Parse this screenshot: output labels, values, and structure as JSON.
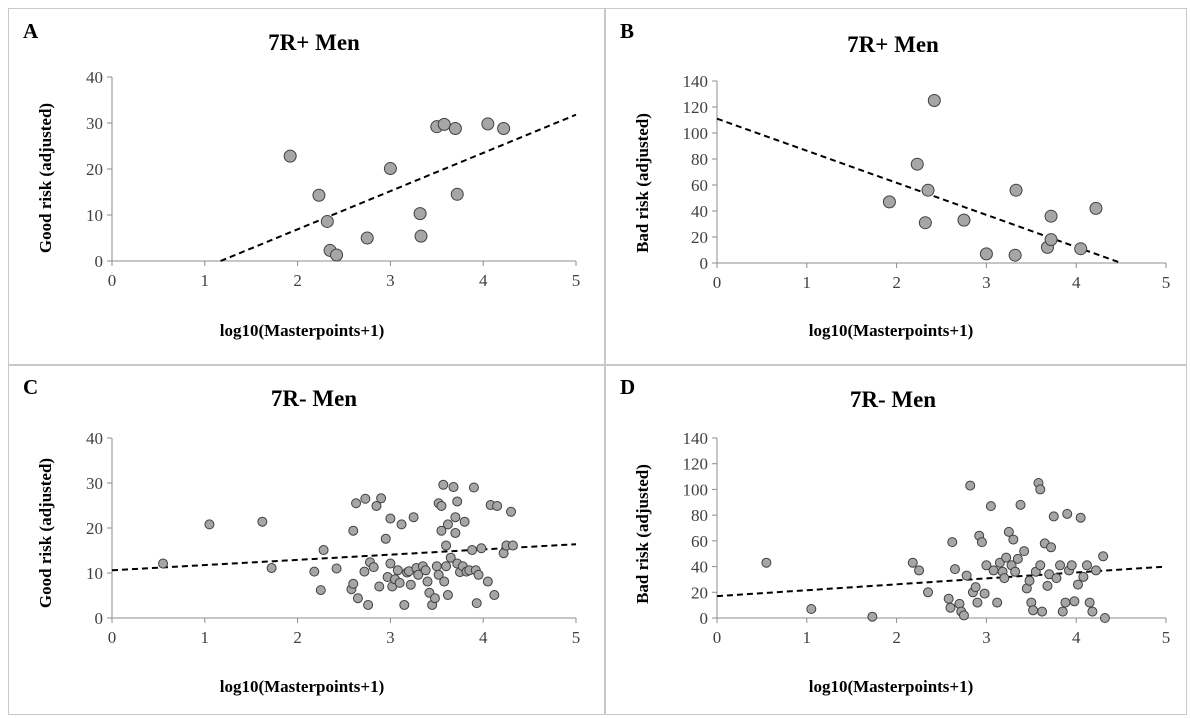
{
  "chart_data": [
    {
      "panel": "A",
      "type": "scatter",
      "title": "7R+ Men",
      "xlabel": "log10(Masterpoints+1)",
      "ylabel": "Good risk (adjusted)",
      "xlim": [
        0,
        5
      ],
      "ylim": [
        0,
        40
      ],
      "xticks": [
        0,
        1,
        2,
        3,
        4,
        5
      ],
      "yticks": [
        0,
        10,
        20,
        30,
        40
      ],
      "grid": false,
      "marker_color": "#a6a6a6",
      "points": [
        [
          1.92,
          22.8
        ],
        [
          2.23,
          14.3
        ],
        [
          2.32,
          8.6
        ],
        [
          2.35,
          2.3
        ],
        [
          2.42,
          1.3
        ],
        [
          2.75,
          5.0
        ],
        [
          3.0,
          20.1
        ],
        [
          3.32,
          10.3
        ],
        [
          3.33,
          5.4
        ],
        [
          3.5,
          29.2
        ],
        [
          3.58,
          29.7
        ],
        [
          3.7,
          28.8
        ],
        [
          3.72,
          14.5
        ],
        [
          4.05,
          29.8
        ],
        [
          4.22,
          28.8
        ]
      ],
      "trendline": {
        "style": "dashed",
        "x": [
          1.17,
          5.0
        ],
        "y": [
          0,
          31.8
        ]
      }
    },
    {
      "panel": "B",
      "type": "scatter",
      "title": "7R+ Men",
      "xlabel": "log10(Masterpoints+1)",
      "ylabel": "Bad risk (adjusted)",
      "xlim": [
        0,
        5
      ],
      "ylim": [
        0,
        140
      ],
      "xticks": [
        0,
        1,
        2,
        3,
        4,
        5
      ],
      "yticks": [
        0,
        20,
        40,
        60,
        80,
        100,
        120,
        140
      ],
      "grid": false,
      "marker_color": "#a6a6a6",
      "points": [
        [
          1.92,
          47
        ],
        [
          2.23,
          76
        ],
        [
          2.32,
          31
        ],
        [
          2.35,
          56
        ],
        [
          2.42,
          125
        ],
        [
          2.75,
          33
        ],
        [
          3.0,
          7
        ],
        [
          3.32,
          6
        ],
        [
          3.33,
          56
        ],
        [
          3.68,
          12
        ],
        [
          3.72,
          36
        ],
        [
          3.72,
          18
        ],
        [
          4.05,
          11
        ],
        [
          4.22,
          42
        ]
      ],
      "trendline": {
        "style": "dashed",
        "x": [
          0.0,
          4.5
        ],
        "y": [
          111,
          0
        ]
      }
    },
    {
      "panel": "C",
      "type": "scatter",
      "title": "7R- Men",
      "xlabel": "log10(Masterpoints+1)",
      "ylabel": "Good risk (adjusted)",
      "xlim": [
        0,
        5
      ],
      "ylim": [
        0,
        40
      ],
      "xticks": [
        0,
        1,
        2,
        3,
        4,
        5
      ],
      "yticks": [
        0,
        10,
        20,
        30,
        40
      ],
      "grid": false,
      "marker_color": "#a6a6a6",
      "points": [
        [
          0.55,
          12.1
        ],
        [
          1.05,
          20.8
        ],
        [
          1.62,
          21.4
        ],
        [
          1.72,
          11.1
        ],
        [
          2.18,
          10.3
        ],
        [
          2.25,
          6.2
        ],
        [
          2.28,
          15.1
        ],
        [
          2.42,
          11.0
        ],
        [
          2.58,
          6.4
        ],
        [
          2.6,
          7.6
        ],
        [
          2.6,
          19.4
        ],
        [
          2.63,
          25.5
        ],
        [
          2.65,
          4.4
        ],
        [
          2.72,
          10.3
        ],
        [
          2.73,
          26.5
        ],
        [
          2.76,
          2.9
        ],
        [
          2.78,
          12.4
        ],
        [
          2.82,
          11.3
        ],
        [
          2.85,
          24.9
        ],
        [
          2.88,
          7.0
        ],
        [
          2.9,
          26.6
        ],
        [
          2.95,
          17.6
        ],
        [
          2.97,
          9.1
        ],
        [
          3.0,
          12.1
        ],
        [
          3.0,
          22.1
        ],
        [
          3.02,
          7.0
        ],
        [
          3.05,
          8.6
        ],
        [
          3.08,
          10.6
        ],
        [
          3.1,
          7.8
        ],
        [
          3.12,
          20.8
        ],
        [
          3.15,
          2.9
        ],
        [
          3.18,
          10.1
        ],
        [
          3.2,
          10.4
        ],
        [
          3.22,
          7.4
        ],
        [
          3.25,
          22.4
        ],
        [
          3.28,
          11.1
        ],
        [
          3.3,
          9.6
        ],
        [
          3.35,
          11.5
        ],
        [
          3.38,
          10.6
        ],
        [
          3.4,
          8.1
        ],
        [
          3.42,
          5.6
        ],
        [
          3.45,
          2.9
        ],
        [
          3.48,
          4.4
        ],
        [
          3.5,
          11.5
        ],
        [
          3.52,
          9.6
        ],
        [
          3.52,
          25.5
        ],
        [
          3.55,
          24.9
        ],
        [
          3.55,
          19.4
        ],
        [
          3.57,
          29.6
        ],
        [
          3.58,
          8.1
        ],
        [
          3.6,
          11.5
        ],
        [
          3.6,
          16.1
        ],
        [
          3.62,
          20.8
        ],
        [
          3.62,
          5.1
        ],
        [
          3.65,
          13.4
        ],
        [
          3.68,
          29.1
        ],
        [
          3.7,
          18.9
        ],
        [
          3.7,
          22.4
        ],
        [
          3.72,
          25.9
        ],
        [
          3.72,
          12.1
        ],
        [
          3.75,
          10.2
        ],
        [
          3.78,
          11.5
        ],
        [
          3.8,
          21.4
        ],
        [
          3.82,
          10.3
        ],
        [
          3.85,
          10.6
        ],
        [
          3.88,
          15.1
        ],
        [
          3.9,
          29.0
        ],
        [
          3.92,
          10.6
        ],
        [
          3.93,
          3.3
        ],
        [
          3.95,
          9.6
        ],
        [
          3.98,
          15.5
        ],
        [
          4.05,
          8.1
        ],
        [
          4.08,
          25.1
        ],
        [
          4.12,
          5.1
        ],
        [
          4.15,
          24.9
        ],
        [
          4.22,
          14.4
        ],
        [
          4.25,
          16.1
        ],
        [
          4.3,
          23.6
        ],
        [
          4.32,
          16.1
        ]
      ],
      "trendline": {
        "style": "dashed",
        "x": [
          0.0,
          5.0
        ],
        "y": [
          10.6,
          16.4
        ]
      }
    },
    {
      "panel": "D",
      "type": "scatter",
      "title": "7R- Men",
      "xlabel": "log10(Masterpoints+1)",
      "ylabel": "Bad risk (adjusted)",
      "xlim": [
        0,
        5
      ],
      "ylim": [
        0,
        140
      ],
      "xticks": [
        0,
        1,
        2,
        3,
        4,
        5
      ],
      "yticks": [
        0,
        20,
        40,
        60,
        80,
        100,
        120,
        140
      ],
      "grid": false,
      "marker_color": "#a6a6a6",
      "points": [
        [
          0.55,
          43
        ],
        [
          1.05,
          7
        ],
        [
          1.73,
          1
        ],
        [
          2.18,
          43
        ],
        [
          2.25,
          37
        ],
        [
          2.35,
          20
        ],
        [
          2.58,
          15
        ],
        [
          2.6,
          8
        ],
        [
          2.62,
          59
        ],
        [
          2.65,
          38
        ],
        [
          2.7,
          11
        ],
        [
          2.72,
          5
        ],
        [
          2.75,
          2
        ],
        [
          2.78,
          33
        ],
        [
          2.82,
          103
        ],
        [
          2.85,
          20
        ],
        [
          2.88,
          24
        ],
        [
          2.9,
          12
        ],
        [
          2.92,
          64
        ],
        [
          2.95,
          59
        ],
        [
          2.98,
          19
        ],
        [
          3.0,
          41
        ],
        [
          3.05,
          87
        ],
        [
          3.08,
          37
        ],
        [
          3.12,
          12
        ],
        [
          3.15,
          43
        ],
        [
          3.18,
          36
        ],
        [
          3.2,
          31
        ],
        [
          3.22,
          47
        ],
        [
          3.25,
          67
        ],
        [
          3.28,
          41
        ],
        [
          3.3,
          61
        ],
        [
          3.32,
          36
        ],
        [
          3.35,
          46
        ],
        [
          3.38,
          88
        ],
        [
          3.42,
          52
        ],
        [
          3.45,
          23
        ],
        [
          3.48,
          29
        ],
        [
          3.5,
          12
        ],
        [
          3.52,
          6
        ],
        [
          3.55,
          36
        ],
        [
          3.58,
          105
        ],
        [
          3.6,
          100
        ],
        [
          3.6,
          41
        ],
        [
          3.62,
          5
        ],
        [
          3.65,
          58
        ],
        [
          3.68,
          25
        ],
        [
          3.7,
          34
        ],
        [
          3.72,
          55
        ],
        [
          3.75,
          79
        ],
        [
          3.78,
          31
        ],
        [
          3.82,
          41
        ],
        [
          3.85,
          5
        ],
        [
          3.88,
          12
        ],
        [
          3.9,
          81
        ],
        [
          3.92,
          37
        ],
        [
          3.95,
          41
        ],
        [
          3.98,
          13
        ],
        [
          4.02,
          26
        ],
        [
          4.05,
          78
        ],
        [
          4.08,
          32
        ],
        [
          4.12,
          41
        ],
        [
          4.15,
          12
        ],
        [
          4.18,
          5
        ],
        [
          4.22,
          37
        ],
        [
          4.3,
          48
        ],
        [
          4.32,
          0
        ]
      ],
      "trendline": {
        "style": "dashed",
        "x": [
          0.0,
          5.0
        ],
        "y": [
          17,
          40
        ]
      }
    }
  ],
  "panels": {
    "a": {
      "letter": "A",
      "title": "7R+ Men",
      "xlabel": "log10(Masterpoints+1)",
      "ylabel": "Good risk (adjusted)"
    },
    "b": {
      "letter": "B",
      "title": "7R+ Men",
      "xlabel": "log10(Masterpoints+1)",
      "ylabel": "Bad risk (adjusted)"
    },
    "c": {
      "letter": "C",
      "title": "7R- Men",
      "xlabel": "log10(Masterpoints+1)",
      "ylabel": "Good risk (adjusted)"
    },
    "d": {
      "letter": "D",
      "title": "7R- Men",
      "xlabel": "log10(Masterpoints+1)",
      "ylabel": "Bad risk (adjusted)"
    }
  }
}
